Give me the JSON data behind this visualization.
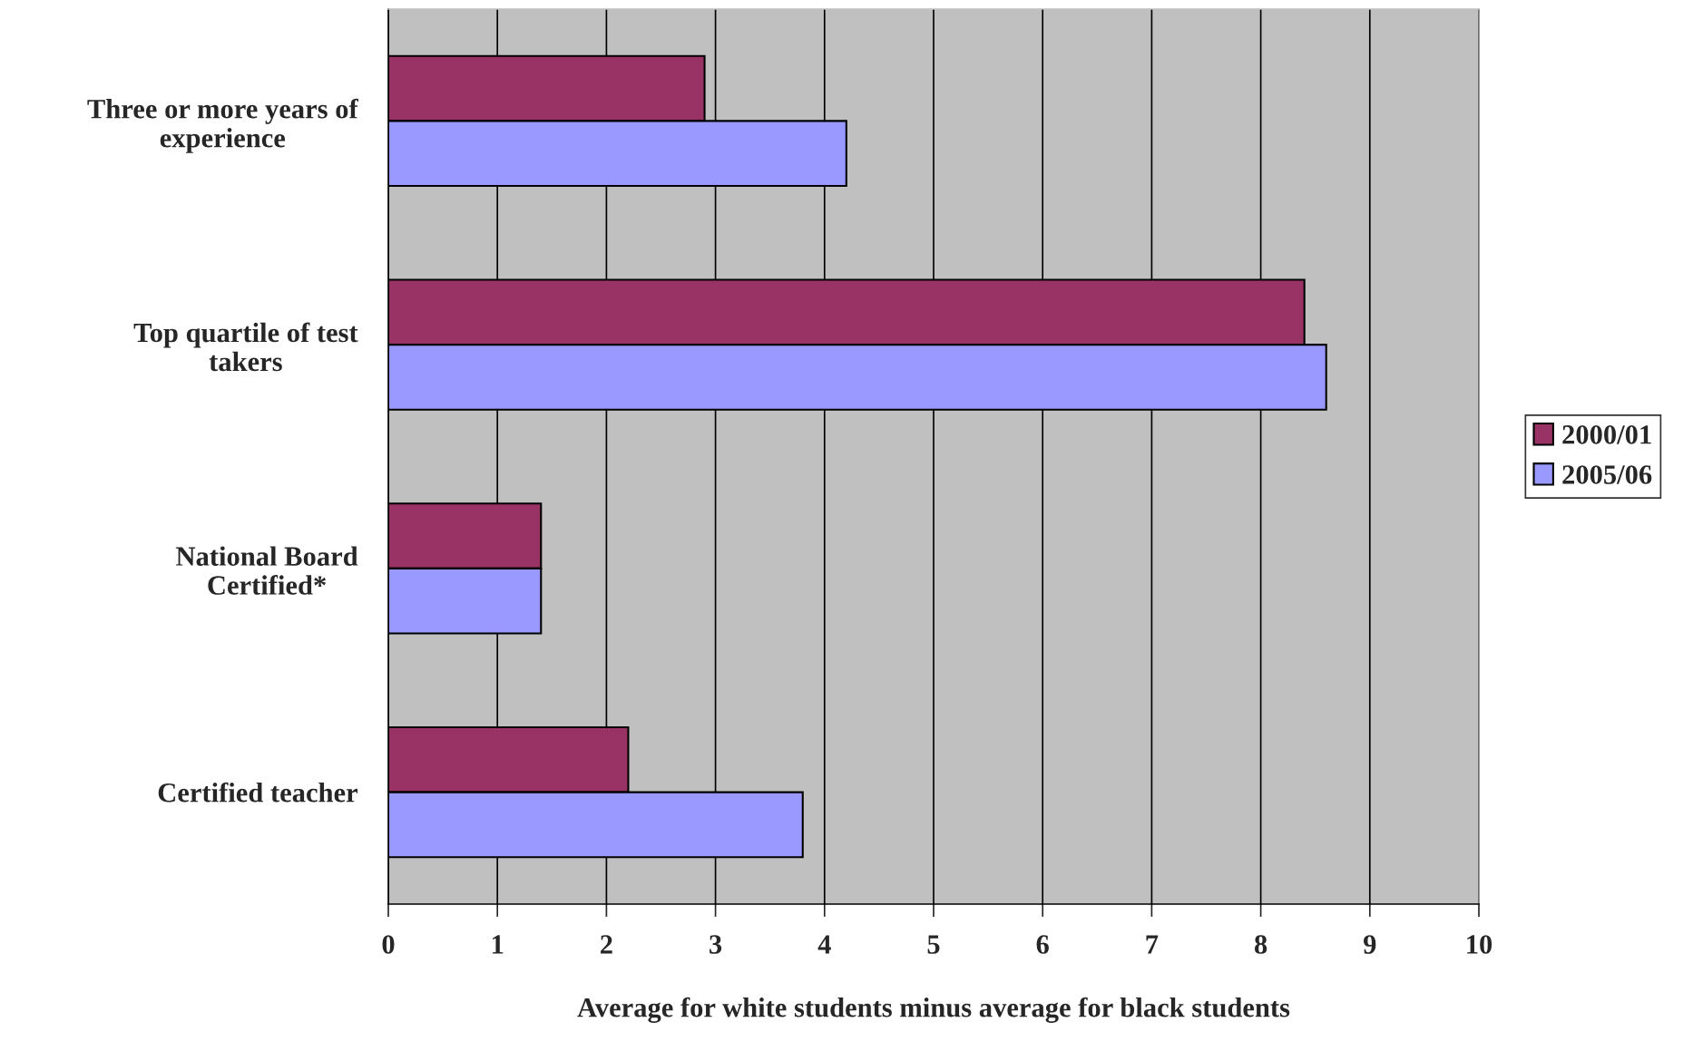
{
  "chart_data": {
    "type": "bar",
    "orientation": "horizontal",
    "xlabel": "Average for white students minus average for black students",
    "categories": [
      "Three or more years of\nexperience",
      "Top quartile of test\ntakers",
      "National Board\nCertified*",
      "Certified teacher"
    ],
    "series": [
      {
        "name": "2000/01",
        "color": "#993366",
        "values": [
          2.9,
          8.4,
          1.4,
          2.2
        ]
      },
      {
        "name": "2005/06",
        "color": "#9999ff",
        "values": [
          4.2,
          8.6,
          1.4,
          3.8
        ]
      }
    ],
    "xlim": [
      0,
      10
    ],
    "xticks": [
      0,
      1,
      2,
      3,
      4,
      5,
      6,
      7,
      8,
      9,
      10
    ],
    "grid": "x",
    "legend": "right"
  }
}
